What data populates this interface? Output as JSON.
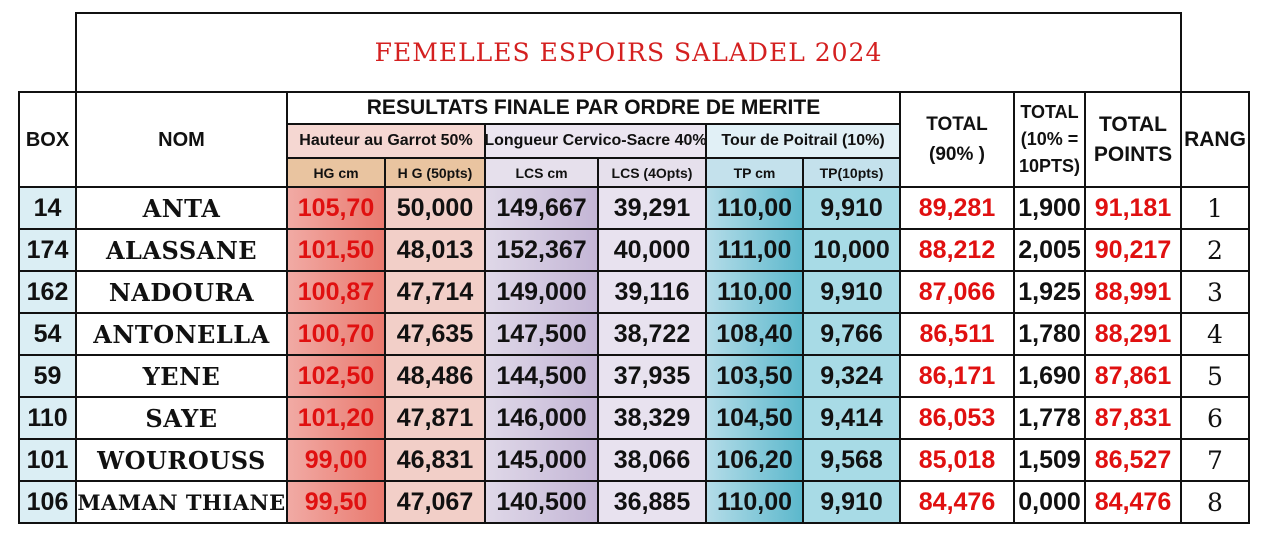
{
  "title": "FEMELLES ESPOIRS SALADEL 2024",
  "headers": {
    "box": "BOX",
    "nom": "NOM",
    "resultats": "RESULTATS FINALE PAR ORDRE DE MERITE",
    "hauteur": "Hauteur au Garrot 50%",
    "longueur": "Longueur Cervico-Sacre 40%",
    "tour": "Tour de Poitrail (10%)",
    "hg_cm": "HG cm",
    "hg_pts": "H G (50pts)",
    "lcs_cm": "LCS cm",
    "lcs_pts": "LCS (4Opts)",
    "tp_cm": "TP cm",
    "tp_pts": "TP(10pts)",
    "total90": "TOTAL (90% )",
    "total10": "TOTAL (10% = 10PTS)",
    "total_points": "TOTAL POINTS",
    "rang": "RANG"
  },
  "rows": [
    {
      "box": "14",
      "nom": "ANTA",
      "hg_cm": "105,70",
      "hg_pts": "50,000",
      "lcs_cm": "149,667",
      "lcs_pts": "39,291",
      "tp_cm": "110,00",
      "tp_pts": "9,910",
      "total90": "89,281",
      "total10": "1,900",
      "total_points": "91,181",
      "rang": "1"
    },
    {
      "box": "174",
      "nom": "ALASSANE",
      "hg_cm": "101,50",
      "hg_pts": "48,013",
      "lcs_cm": "152,367",
      "lcs_pts": "40,000",
      "tp_cm": "111,00",
      "tp_pts": "10,000",
      "total90": "88,212",
      "total10": "2,005",
      "total_points": "90,217",
      "rang": "2"
    },
    {
      "box": "162",
      "nom": "NADOURA",
      "hg_cm": "100,87",
      "hg_pts": "47,714",
      "lcs_cm": "149,000",
      "lcs_pts": "39,116",
      "tp_cm": "110,00",
      "tp_pts": "9,910",
      "total90": "87,066",
      "total10": "1,925",
      "total_points": "88,991",
      "rang": "3"
    },
    {
      "box": "54",
      "nom": "ANTONELLA",
      "hg_cm": "100,70",
      "hg_pts": "47,635",
      "lcs_cm": "147,500",
      "lcs_pts": "38,722",
      "tp_cm": "108,40",
      "tp_pts": "9,766",
      "total90": "86,511",
      "total10": "1,780",
      "total_points": "88,291",
      "rang": "4"
    },
    {
      "box": "59",
      "nom": "YENE",
      "hg_cm": "102,50",
      "hg_pts": "48,486",
      "lcs_cm": "144,500",
      "lcs_pts": "37,935",
      "tp_cm": "103,50",
      "tp_pts": "9,324",
      "total90": "86,171",
      "total10": "1,690",
      "total_points": "87,861",
      "rang": "5"
    },
    {
      "box": "110",
      "nom": "SAYE",
      "hg_cm": "101,20",
      "hg_pts": "47,871",
      "lcs_cm": "146,000",
      "lcs_pts": "38,329",
      "tp_cm": "104,50",
      "tp_pts": "9,414",
      "total90": "86,053",
      "total10": "1,778",
      "total_points": "87,831",
      "rang": "6"
    },
    {
      "box": "101",
      "nom": "WOUROUSS",
      "hg_cm": "99,00",
      "hg_pts": "46,831",
      "lcs_cm": "145,000",
      "lcs_pts": "38,066",
      "tp_cm": "106,20",
      "tp_pts": "9,568",
      "total90": "85,018",
      "total10": "1,509",
      "total_points": "86,527",
      "rang": "7"
    },
    {
      "box": "106",
      "nom": "MAMAN THIANE",
      "hg_cm": "99,50",
      "hg_pts": "47,067",
      "lcs_cm": "140,500",
      "lcs_pts": "36,885",
      "tp_cm": "110,00",
      "tp_pts": "9,910",
      "total90": "84,476",
      "total10": "0,000",
      "total_points": "84,476",
      "rang": "8"
    }
  ]
}
